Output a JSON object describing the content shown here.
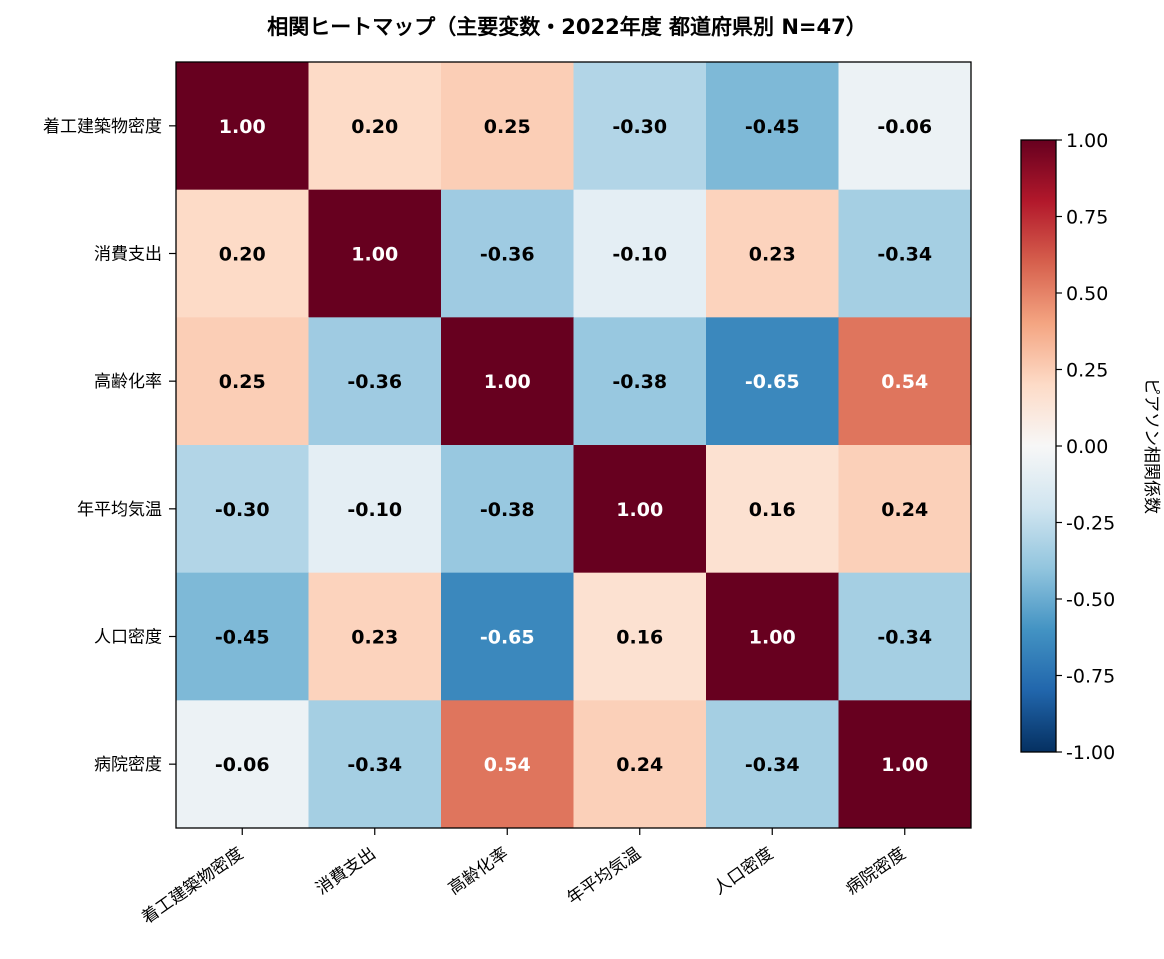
{
  "chart_data": {
    "type": "heatmap",
    "title": "相関ヒートマップ（主要変数・2022年度 都道府県別 N=47）",
    "variables": [
      "着工建築物密度",
      "消費支出",
      "高齢化率",
      "年平均気温",
      "人口密度",
      "病院密度"
    ],
    "matrix": [
      [
        1.0,
        0.2,
        0.25,
        -0.3,
        -0.45,
        -0.06
      ],
      [
        0.2,
        1.0,
        -0.36,
        -0.1,
        0.23,
        -0.34
      ],
      [
        0.25,
        -0.36,
        1.0,
        -0.38,
        -0.65,
        0.54
      ],
      [
        -0.3,
        -0.1,
        -0.38,
        1.0,
        0.16,
        0.24
      ],
      [
        -0.45,
        0.23,
        -0.65,
        0.16,
        1.0,
        -0.34
      ],
      [
        -0.06,
        -0.34,
        0.54,
        0.24,
        -0.34,
        1.0
      ]
    ],
    "value_format": "0.00",
    "colorbar": {
      "label": "ピアソン相関係数",
      "range": [
        -1.0,
        1.0
      ],
      "ticks": [
        "1.00",
        "0.75",
        "0.50",
        "0.25",
        "0.00",
        "-0.25",
        "-0.50",
        "-0.75",
        "-1.00"
      ],
      "tick_values": [
        1.0,
        0.75,
        0.5,
        0.25,
        0.0,
        -0.25,
        -0.5,
        -0.75,
        -1.0
      ],
      "colormap": "RdBu_r",
      "colormap_stops": [
        "#053061",
        "#2166ac",
        "#4393c3",
        "#92c5de",
        "#d1e5f0",
        "#f7f7f7",
        "#fddbc7",
        "#f4a582",
        "#d6604d",
        "#b2182b",
        "#67001f"
      ]
    },
    "grid": false
  }
}
